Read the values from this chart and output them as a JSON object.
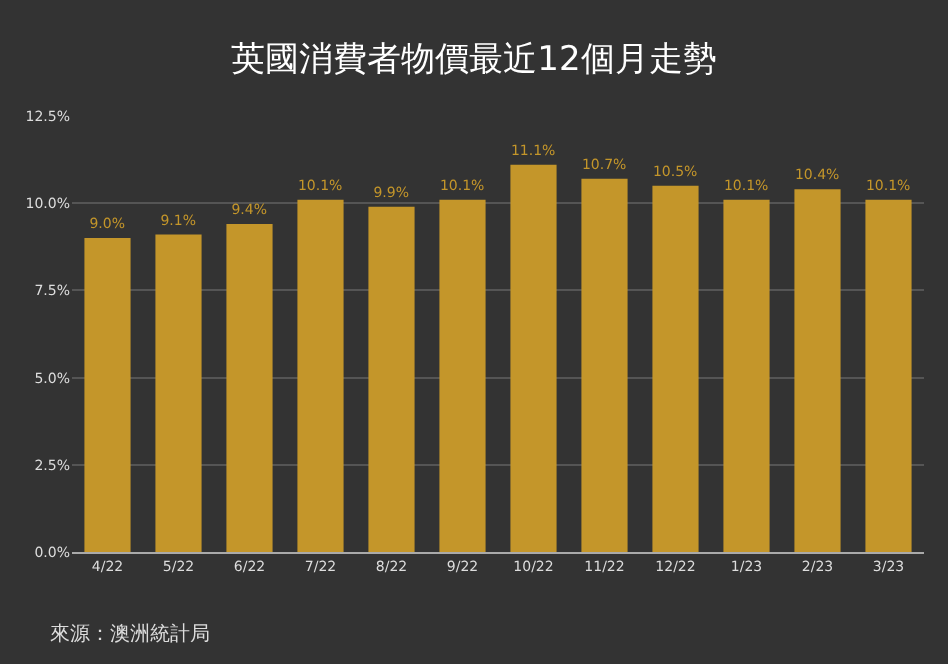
{
  "chart_data": {
    "type": "bar",
    "title": "英國消費者物價最近12個月走勢",
    "categories": [
      "4/22",
      "5/22",
      "6/22",
      "7/22",
      "8/22",
      "9/22",
      "10/22",
      "11/22",
      "12/22",
      "1/23",
      "2/23",
      "3/23"
    ],
    "values": [
      9.0,
      9.1,
      9.4,
      10.1,
      9.9,
      10.1,
      11.1,
      10.7,
      10.5,
      10.1,
      10.4,
      10.1
    ],
    "value_labels": [
      "9.0%",
      "9.1%",
      "9.4%",
      "10.1%",
      "9.9%",
      "10.1%",
      "11.1%",
      "10.7%",
      "10.5%",
      "10.1%",
      "10.4%",
      "10.1%"
    ],
    "color": "#c4962a",
    "ylim": [
      0,
      12.5
    ],
    "yticks": [
      {
        "value": 0,
        "label": "0.0%"
      },
      {
        "value": 2.5,
        "label": "2.5%"
      },
      {
        "value": 5,
        "label": "5.0%"
      },
      {
        "value": 7.5,
        "label": "7.5%"
      },
      {
        "value": 10,
        "label": "10.0%"
      },
      {
        "value": 12.5,
        "label": "12.5%"
      }
    ],
    "grid": "y",
    "annotations": [
      "來源：澳洲統計局"
    ]
  }
}
